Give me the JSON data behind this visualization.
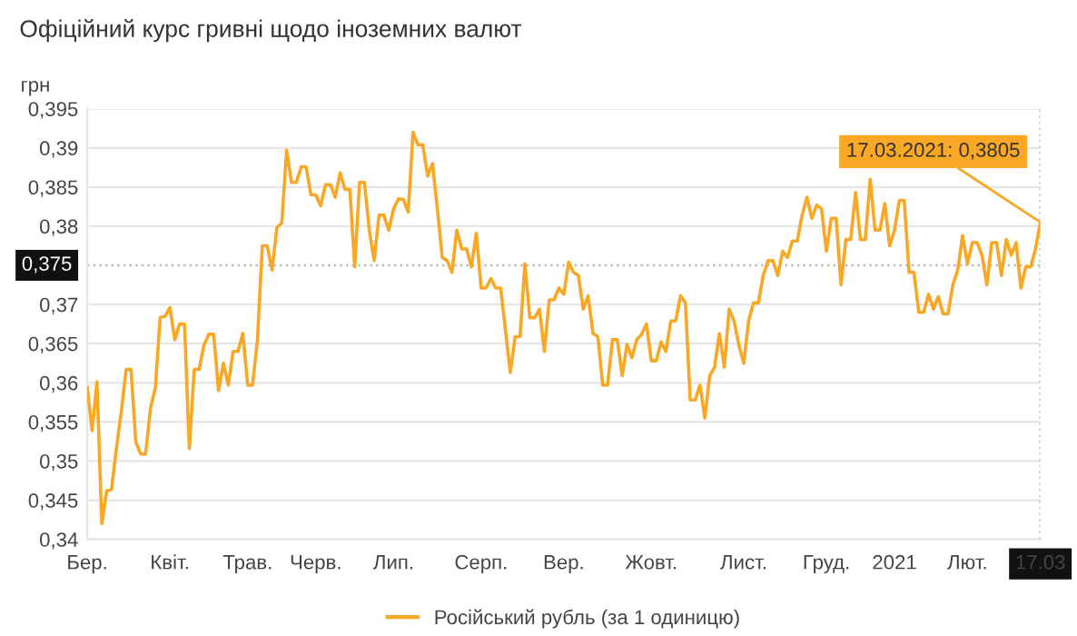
{
  "chart_data": {
    "type": "line",
    "title": "Офіційний курс гривні щодо іноземних валют",
    "ylabel": "грн",
    "categories": [
      "Бер.",
      null,
      null,
      null,
      null,
      null,
      null,
      null,
      null,
      null,
      null,
      null,
      null,
      null,
      null,
      null,
      null,
      "Квіт.",
      null,
      null,
      null,
      null,
      null,
      null,
      null,
      null,
      null,
      null,
      null,
      null,
      null,
      null,
      null,
      "Трав.",
      null,
      null,
      null,
      null,
      null,
      null,
      null,
      null,
      null,
      null,
      null,
      null,
      null,
      "Черв.",
      null,
      null,
      null,
      null,
      null,
      null,
      null,
      null,
      null,
      null,
      null,
      null,
      null,
      null,
      null,
      "Лип.",
      null,
      null,
      null,
      null,
      null,
      null,
      null,
      null,
      null,
      null,
      null,
      null,
      null,
      null,
      null,
      null,
      null,
      "Серп.",
      null,
      null,
      null,
      null,
      null,
      null,
      null,
      null,
      null,
      null,
      null,
      null,
      null,
      null,
      null,
      null,
      "Вер.",
      null,
      null,
      null,
      null,
      null,
      null,
      null,
      null,
      null,
      null,
      null,
      null,
      null,
      null,
      null,
      null,
      null,
      "Жовт.",
      null,
      null,
      null,
      null,
      null,
      null,
      null,
      null,
      null,
      null,
      null,
      null,
      null,
      null,
      null,
      null,
      null,
      null,
      "Лист.",
      null,
      null,
      null,
      null,
      null,
      null,
      null,
      null,
      null,
      null,
      null,
      null,
      null,
      null,
      null,
      null,
      "Груд.",
      null,
      null,
      null,
      null,
      null,
      null,
      null,
      null,
      null,
      null,
      null,
      null,
      null,
      "2021",
      null,
      null,
      null,
      null,
      null,
      null,
      null,
      null,
      null,
      null,
      null,
      null,
      null,
      null,
      "Лют.",
      null,
      null,
      null,
      null,
      null,
      null,
      null,
      null,
      null,
      null,
      null,
      null,
      null,
      null,
      "17.03"
    ],
    "series": [
      {
        "name": "Російський рубль (за 1 одиницю)",
        "color": "#f9a825",
        "values": [
          0.3594,
          0.3539,
          0.3601,
          0.342,
          0.3462,
          0.3464,
          0.3516,
          0.3563,
          0.3617,
          0.3617,
          0.3524,
          0.3509,
          0.3509,
          0.3567,
          0.3594,
          0.3683,
          0.3685,
          0.3696,
          0.3655,
          0.3675,
          0.3675,
          0.3516,
          0.3617,
          0.3617,
          0.3648,
          0.3662,
          0.3662,
          0.359,
          0.3625,
          0.3597,
          0.364,
          0.364,
          0.3663,
          0.3597,
          0.3597,
          0.3655,
          0.3775,
          0.3775,
          0.3744,
          0.3798,
          0.3804,
          0.3897,
          0.3856,
          0.3856,
          0.3876,
          0.3876,
          0.384,
          0.384,
          0.3826,
          0.3853,
          0.3853,
          0.3837,
          0.3868,
          0.3847,
          0.3847,
          0.3748,
          0.3856,
          0.3856,
          0.3795,
          0.3756,
          0.3814,
          0.3814,
          0.3795,
          0.3822,
          0.3835,
          0.3834,
          0.3818,
          0.392,
          0.3904,
          0.3904,
          0.3864,
          0.388,
          0.3822,
          0.376,
          0.3756,
          0.3741,
          0.3795,
          0.3771,
          0.3771,
          0.3748,
          0.3791,
          0.3721,
          0.3721,
          0.3733,
          0.3721,
          0.3721,
          0.3667,
          0.3613,
          0.3659,
          0.3659,
          0.3752,
          0.3683,
          0.3683,
          0.3694,
          0.364,
          0.3706,
          0.3706,
          0.3721,
          0.3713,
          0.3754,
          0.3741,
          0.3737,
          0.3694,
          0.3711,
          0.3663,
          0.3659,
          0.3597,
          0.3597,
          0.3655,
          0.3655,
          0.3609,
          0.3649,
          0.3632,
          0.3655,
          0.3662,
          0.3675,
          0.3628,
          0.3628,
          0.3652,
          0.364,
          0.3679,
          0.3679,
          0.3711,
          0.3702,
          0.3578,
          0.3578,
          0.3597,
          0.3555,
          0.3609,
          0.362,
          0.3663,
          0.362,
          0.3694,
          0.3679,
          0.3648,
          0.3625,
          0.3679,
          0.3702,
          0.3702,
          0.3737,
          0.3756,
          0.3756,
          0.3737,
          0.3768,
          0.376,
          0.3781,
          0.3781,
          0.3814,
          0.3837,
          0.381,
          0.3827,
          0.3822,
          0.3768,
          0.381,
          0.381,
          0.3725,
          0.3783,
          0.3783,
          0.3843,
          0.3783,
          0.3783,
          0.386,
          0.3795,
          0.3795,
          0.3829,
          0.3775,
          0.3795,
          0.3833,
          0.3833,
          0.3741,
          0.3741,
          0.369,
          0.369,
          0.3713,
          0.3694,
          0.371,
          0.3688,
          0.3688,
          0.3725,
          0.3744,
          0.3788,
          0.3752,
          0.3779,
          0.3779,
          0.3763,
          0.3725,
          0.3779,
          0.3779,
          0.3737,
          0.3783,
          0.3763,
          0.3779,
          0.3721,
          0.3748,
          0.3748,
          0.3771,
          0.3805
        ]
      }
    ],
    "ylim": [
      0.34,
      0.395
    ],
    "yticks": [
      {
        "value": 0.34,
        "label": "0,34"
      },
      {
        "value": 0.345,
        "label": "0,345"
      },
      {
        "value": 0.35,
        "label": "0,35"
      },
      {
        "value": 0.355,
        "label": "0,355"
      },
      {
        "value": 0.36,
        "label": "0,36"
      },
      {
        "value": 0.365,
        "label": "0,365"
      },
      {
        "value": 0.37,
        "label": "0,37"
      },
      {
        "value": 0.38,
        "label": "0,38"
      },
      {
        "value": 0.385,
        "label": "0,385"
      },
      {
        "value": 0.39,
        "label": "0,39"
      },
      {
        "value": 0.395,
        "label": "0,395"
      }
    ],
    "ref_lines": [
      {
        "axis": "y",
        "value": 0.375,
        "label": "0,375",
        "color": "#bbbbbb",
        "line_style": "dotted"
      },
      {
        "axis": "x",
        "value": "17.03",
        "color": "#bbbbbb",
        "line_style": "dotted"
      }
    ],
    "annotations": [
      {
        "text": "17.03.2021: 0,3805",
        "x": "17.03",
        "y": 0.3805
      }
    ],
    "grid": "y",
    "legend": "bottom"
  }
}
